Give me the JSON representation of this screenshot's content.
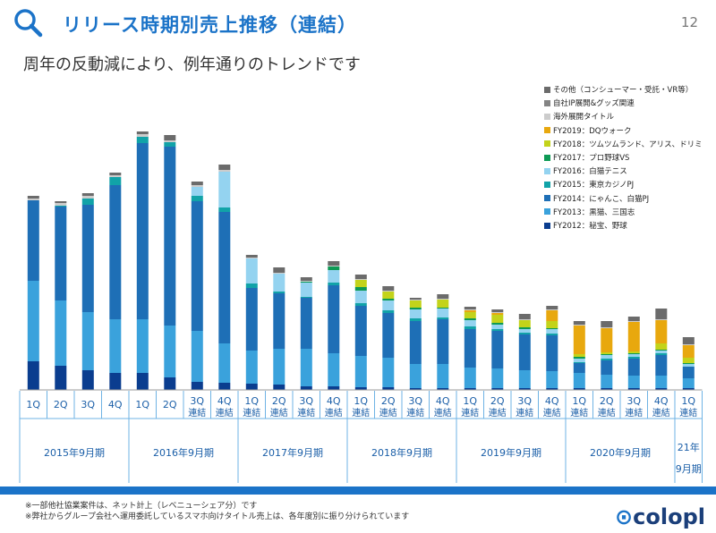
{
  "header": {
    "title": "リリース時期別売上推移（連結）",
    "page_number": "12",
    "subtitle": "周年の反動減により、例年通りのトレンドです"
  },
  "footer": {
    "note1": "※一部他社協業案件は、ネット計上（レベニューシェア分）です",
    "note2": "※弊社からグループ会社へ運用委託しているスマホ向けタイトル売上は、各年度別に振り分けられています",
    "logo": "colopl"
  },
  "chart_data": {
    "type": "bar",
    "stacked": true,
    "title": "リリース時期別売上推移（連結）",
    "categories": [
      "1Q",
      "2Q",
      "3Q",
      "4Q",
      "1Q",
      "2Q",
      "3Q 連結",
      "4Q 連結",
      "1Q 連結",
      "2Q 連結",
      "3Q 連結",
      "4Q 連結",
      "1Q 連結",
      "2Q 連結",
      "3Q 連結",
      "4Q 連結",
      "1Q 連結",
      "2Q 連結",
      "3Q 連結",
      "4Q 連結",
      "1Q 連結",
      "2Q 連結",
      "3Q 連結",
      "4Q 連結",
      "1Q 連結"
    ],
    "category_rows": [
      {
        "top": "1Q",
        "bottom": ""
      },
      {
        "top": "2Q",
        "bottom": ""
      },
      {
        "top": "3Q",
        "bottom": ""
      },
      {
        "top": "4Q",
        "bottom": ""
      },
      {
        "top": "1Q",
        "bottom": ""
      },
      {
        "top": "2Q",
        "bottom": ""
      },
      {
        "top": "3Q",
        "bottom": "連結"
      },
      {
        "top": "4Q",
        "bottom": "連結"
      },
      {
        "top": "1Q",
        "bottom": "連結"
      },
      {
        "top": "2Q",
        "bottom": "連結"
      },
      {
        "top": "3Q",
        "bottom": "連結"
      },
      {
        "top": "4Q",
        "bottom": "連結"
      },
      {
        "top": "1Q",
        "bottom": "連結"
      },
      {
        "top": "2Q",
        "bottom": "連結"
      },
      {
        "top": "3Q",
        "bottom": "連結"
      },
      {
        "top": "4Q",
        "bottom": "連結"
      },
      {
        "top": "1Q",
        "bottom": "連結"
      },
      {
        "top": "2Q",
        "bottom": "連結"
      },
      {
        "top": "3Q",
        "bottom": "連結"
      },
      {
        "top": "4Q",
        "bottom": "連結"
      },
      {
        "top": "1Q",
        "bottom": "連結"
      },
      {
        "top": "2Q",
        "bottom": "連結"
      },
      {
        "top": "3Q",
        "bottom": "連結"
      },
      {
        "top": "4Q",
        "bottom": "連結"
      },
      {
        "top": "1Q",
        "bottom": "連結"
      }
    ],
    "fiscal_years": [
      {
        "label": "2015年9月期",
        "span": 4
      },
      {
        "label": "2016年9月期",
        "span": 4
      },
      {
        "label": "2017年9月期",
        "span": 4
      },
      {
        "label": "2018年9月期",
        "span": 4
      },
      {
        "label": "2019年9月期",
        "span": 4
      },
      {
        "label": "2020年9月期",
        "span": 4
      },
      {
        "label": "21年\n9月期",
        "span": 1
      }
    ],
    "ylim": [
      0,
      320
    ],
    "unit": "relative",
    "series": [
      {
        "name": "FY2012：秘宝、野球",
        "color": "#0a3d8f",
        "values": [
          32,
          27,
          22,
          19,
          19,
          14,
          9,
          8,
          7,
          6,
          4,
          4,
          3,
          3,
          2,
          2,
          2,
          2,
          2,
          2,
          2,
          2,
          2,
          2,
          2
        ]
      },
      {
        "name": "FY2013：黒猫、三国志",
        "color": "#3aa2dc",
        "values": [
          90,
          73,
          65,
          60,
          60,
          58,
          57,
          44,
          37,
          40,
          42,
          37,
          35,
          33,
          27,
          27,
          23,
          22,
          20,
          19,
          17,
          15,
          14,
          14,
          11
        ]
      },
      {
        "name": "FY2014：にゃんこ、白猫PJ",
        "color": "#1e6fb6",
        "values": [
          90,
          105,
          120,
          150,
          197,
          200,
          145,
          147,
          70,
          62,
          57,
          76,
          56,
          50,
          48,
          50,
          43,
          42,
          40,
          40,
          11,
          16,
          19,
          23,
          13
        ]
      },
      {
        "name": "FY2015：東京カジノPJ",
        "color": "#11a3a8",
        "values": [
          0,
          1,
          7,
          9,
          7,
          5,
          6,
          5,
          5,
          2,
          1,
          3,
          3,
          3,
          3,
          2,
          3,
          2,
          2,
          2,
          1,
          2,
          2,
          2,
          0
        ]
      },
      {
        "name": "FY2016：白猫テニス",
        "color": "#94d3f0",
        "values": [
          0,
          0,
          0,
          0,
          0,
          0,
          10,
          40,
          28,
          20,
          16,
          14,
          14,
          11,
          10,
          10,
          7,
          5,
          4,
          5,
          4,
          4,
          3,
          3,
          3
        ]
      },
      {
        "name": "FY2017：プロ野球VS",
        "color": "#0d9a55",
        "values": [
          0,
          0,
          0,
          0,
          0,
          0,
          0,
          0,
          0,
          0,
          1,
          4,
          4,
          2,
          2,
          1,
          2,
          2,
          2,
          1,
          2,
          1,
          1,
          1,
          1
        ]
      },
      {
        "name": "FY2018：ツムツムランド、アリス、ドリミ",
        "color": "#c3d31a",
        "values": [
          0,
          0,
          0,
          0,
          0,
          0,
          0,
          0,
          0,
          0,
          0,
          0,
          8,
          8,
          8,
          9,
          7,
          9,
          8,
          8,
          3,
          2,
          2,
          7,
          6
        ]
      },
      {
        "name": "FY2019：DQウォーク",
        "color": "#e8a80e",
        "values": [
          0,
          0,
          0,
          0,
          0,
          0,
          0,
          0,
          0,
          0,
          0,
          0,
          0,
          0,
          0,
          0,
          2,
          2,
          0,
          12,
          32,
          27,
          33,
          26,
          14
        ]
      },
      {
        "name": "海外展開タイトル",
        "color": "#cccccc",
        "values": [
          2,
          3,
          3,
          2,
          3,
          2,
          2,
          2,
          1,
          1,
          1,
          1,
          1,
          1,
          1,
          1,
          1,
          1,
          1,
          1,
          1,
          1,
          1,
          1,
          1
        ]
      },
      {
        "name": "自社IP展開&グッズ関連",
        "color": "#848484",
        "values": [
          0,
          0,
          0,
          0,
          0,
          0,
          0,
          0,
          0,
          0,
          0,
          0,
          0,
          0,
          0,
          0,
          0,
          0,
          0,
          0,
          0,
          0,
          0,
          0,
          0
        ]
      },
      {
        "name": "その他（コンシューマー・受託・VR等）",
        "color": "#6b6b6b",
        "values": [
          3,
          2,
          3,
          3,
          3,
          6,
          4,
          6,
          3,
          6,
          4,
          5,
          5,
          5,
          2,
          5,
          3,
          3,
          6,
          4,
          4,
          7,
          5,
          12,
          8
        ]
      }
    ],
    "legend": [
      {
        "name": "その他（コンシューマー・受託・VR等）",
        "color": "#6b6b6b"
      },
      {
        "name": "自社IP展開&グッズ関連",
        "color": "#848484"
      },
      {
        "name": "海外展開タイトル",
        "color": "#cccccc"
      },
      {
        "name": "FY2019：DQウォーク",
        "color": "#e8a80e"
      },
      {
        "name": "FY2018：ツムツムランド、アリス、ドリミ",
        "color": "#c3d31a"
      },
      {
        "name": "FY2017：プロ野球VS",
        "color": "#0d9a55"
      },
      {
        "name": "FY2016：白猫テニス",
        "color": "#94d3f0"
      },
      {
        "name": "FY2015：東京カジノPJ",
        "color": "#11a3a8"
      },
      {
        "name": "FY2014：にゃんこ、白猫PJ",
        "color": "#1e6fb6"
      },
      {
        "name": "FY2013：黒猫、三国志",
        "color": "#3aa2dc"
      },
      {
        "name": "FY2012：秘宝、野球",
        "color": "#0a3d8f"
      }
    ],
    "legend_position": "top-right",
    "accent_color": "#1b73c8"
  }
}
